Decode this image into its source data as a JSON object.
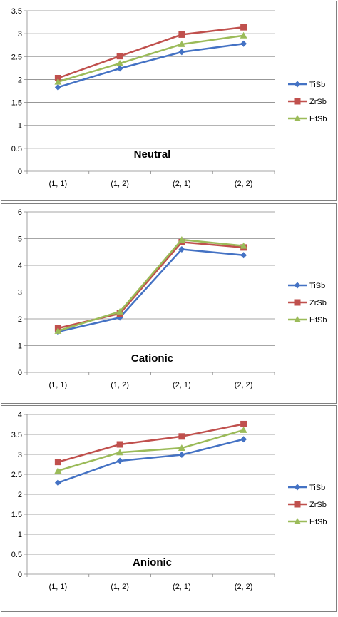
{
  "colors": {
    "TiSb": "#4472C4",
    "ZrSb": "#C0504D",
    "HfSb": "#9BBB59",
    "grid": "#888888",
    "frame": "#808080"
  },
  "chart_data": [
    {
      "type": "line",
      "title": "Neutral",
      "categories": [
        "(1, 1)",
        "(1, 2)",
        "(2, 1)",
        "(2, 2)"
      ],
      "ylim": [
        0,
        3.5
      ],
      "yticks": [
        "0",
        "0.5",
        "1",
        "1.5",
        "2",
        "2.5",
        "3",
        "3.5"
      ],
      "grid": true,
      "legend_position": "right",
      "series": [
        {
          "name": "TiSb",
          "marker": "diamond",
          "values": [
            1.83,
            2.24,
            2.6,
            2.78
          ]
        },
        {
          "name": "ZrSb",
          "marker": "square",
          "values": [
            2.03,
            2.51,
            2.98,
            3.14
          ]
        },
        {
          "name": "HfSb",
          "marker": "triangle",
          "values": [
            1.95,
            2.35,
            2.77,
            2.96
          ]
        }
      ]
    },
    {
      "type": "line",
      "title": "Cationic",
      "categories": [
        "(1, 1)",
        "(1, 2)",
        "(2, 1)",
        "(2, 2)"
      ],
      "ylim": [
        0,
        6
      ],
      "yticks": [
        "0",
        "1",
        "2",
        "3",
        "4",
        "5",
        "6"
      ],
      "grid": true,
      "legend_position": "right",
      "series": [
        {
          "name": "TiSb",
          "marker": "diamond",
          "values": [
            1.52,
            2.05,
            4.6,
            4.38
          ]
        },
        {
          "name": "ZrSb",
          "marker": "square",
          "values": [
            1.65,
            2.2,
            4.87,
            4.67
          ]
        },
        {
          "name": "HfSb",
          "marker": "triangle",
          "values": [
            1.55,
            2.27,
            4.96,
            4.73
          ]
        }
      ]
    },
    {
      "type": "line",
      "title": "Anionic",
      "categories": [
        "(1, 1)",
        "(1, 2)",
        "(2, 1)",
        "(2, 2)"
      ],
      "ylim": [
        0,
        4
      ],
      "yticks": [
        "0",
        "0.5",
        "1",
        "1.5",
        "2",
        "2.5",
        "3",
        "3.5",
        "4"
      ],
      "grid": true,
      "legend_position": "right",
      "series": [
        {
          "name": "TiSb",
          "marker": "diamond",
          "values": [
            2.29,
            2.84,
            2.99,
            3.38
          ]
        },
        {
          "name": "ZrSb",
          "marker": "square",
          "values": [
            2.81,
            3.25,
            3.45,
            3.76
          ]
        },
        {
          "name": "HfSb",
          "marker": "triangle",
          "values": [
            2.59,
            3.05,
            3.16,
            3.61
          ]
        }
      ]
    }
  ]
}
